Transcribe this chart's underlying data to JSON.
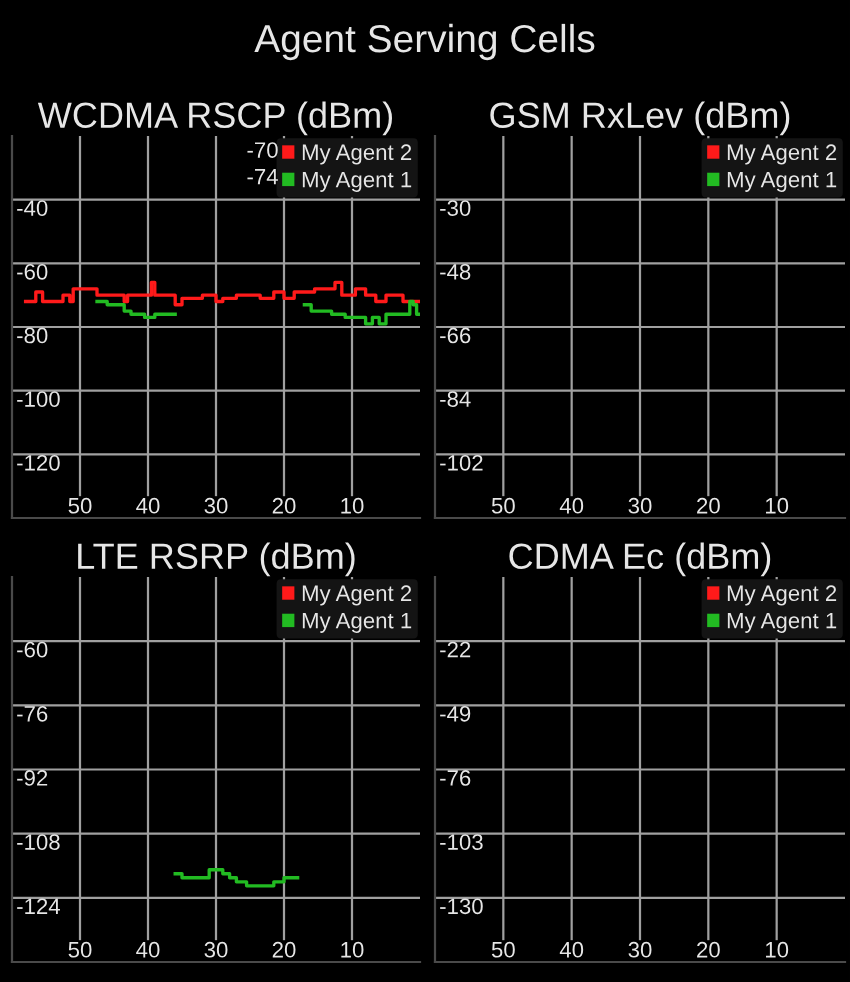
{
  "chart_data": [
    {
      "type": "step",
      "title": "WCDMA RSCP (dBm)",
      "xlim": [
        60,
        0
      ],
      "xticks": [
        50,
        40,
        30,
        20,
        10
      ],
      "ylim": [
        -140,
        -20
      ],
      "yticks": [
        -120,
        -100,
        -80,
        -60,
        -40
      ],
      "grid": true,
      "legend": "top right",
      "annotations": [
        "Agent Serving Cells",
        "-70",
        "-74"
      ],
      "series": [
        {
          "name": "My Agent 2",
          "color": "#ff1a1a",
          "x": [
            58,
            56.5,
            55.5,
            52.5,
            51.5,
            51,
            47.5,
            43.5,
            43,
            39.5,
            39,
            36,
            35,
            32,
            30,
            29,
            27,
            23.5,
            21.5,
            20,
            18.5,
            15.5,
            12.5,
            11.5,
            9.5,
            8,
            6.5,
            5,
            2.5,
            0
          ],
          "values": [
            -72,
            -69,
            -72,
            -70,
            -72,
            -68,
            -70,
            -72,
            -70,
            -66,
            -70,
            -73,
            -71,
            -70,
            -72,
            -71,
            -70,
            -71,
            -69,
            -71,
            -69,
            -68,
            -66,
            -70,
            -68,
            -70,
            -72,
            -70,
            -72,
            -72
          ]
        },
        {
          "name": "My Agent 1",
          "color": "#22bb22",
          "x": [
            47.5,
            46,
            43.5,
            42.5,
            40.5,
            39,
            36,
            17,
            16,
            13,
            11,
            8,
            7,
            6,
            5,
            1.5,
            1,
            0.5,
            0
          ],
          "values": [
            -72,
            -73,
            -75,
            -76,
            -77,
            -76,
            null,
            -73,
            -75,
            -76,
            -77,
            -79,
            -77,
            -79,
            -76,
            -72,
            -73,
            -76,
            -76
          ]
        }
      ]
    },
    {
      "type": "step",
      "title": "GSM RxLev (dBm)",
      "categories": [
        "50",
        "40",
        "30",
        "20",
        "10"
      ],
      "ylim": [
        -120,
        -12
      ],
      "yticks": [
        -102,
        -84,
        -66,
        -48,
        -30
      ],
      "grid": true,
      "legend": "top right",
      "series": [
        {
          "name": "My Agent 2",
          "color": "#ff1a1a",
          "values": [
            null,
            null,
            null,
            null,
            null
          ]
        },
        {
          "name": "My Agent 1",
          "color": "#22bb22",
          "values": [
            null,
            null,
            null,
            null,
            null
          ]
        }
      ]
    },
    {
      "type": "step",
      "title": "LTE RSRP (dBm)",
      "xlim": [
        60,
        0
      ],
      "xticks": [
        50,
        40,
        30,
        20,
        10
      ],
      "ylim": [
        -140,
        -44
      ],
      "yticks": [
        -124,
        -108,
        -92,
        -76,
        -60
      ],
      "grid": true,
      "legend": "top right",
      "series": [
        {
          "name": "My Agent 2",
          "color": "#ff1a1a"
        },
        {
          "name": "My Agent 1",
          "color": "#22bb22",
          "x": [
            36,
            35,
            31,
            29,
            28,
            27,
            25.5,
            21.5,
            20,
            18
          ],
          "values": [
            -118,
            -119,
            -117,
            -118,
            -119,
            -120,
            -121,
            -120,
            -119,
            -119
          ]
        }
      ]
    },
    {
      "type": "step",
      "title": "CDMA Ec (dBm)",
      "categories": [
        "50",
        "40",
        "30",
        "20",
        "10"
      ],
      "ylim": [
        -157,
        5
      ],
      "yticks": [
        -130,
        -103,
        -76,
        -49,
        -22
      ],
      "grid": true,
      "legend": "top right",
      "series": [
        {
          "name": "My Agent 2",
          "color": "#ff1a1a",
          "values": [
            null,
            null,
            null,
            null,
            null
          ]
        },
        {
          "name": "My Agent 1",
          "color": "#22bb22",
          "values": [
            null,
            null,
            null,
            null,
            null
          ]
        }
      ]
    }
  ]
}
